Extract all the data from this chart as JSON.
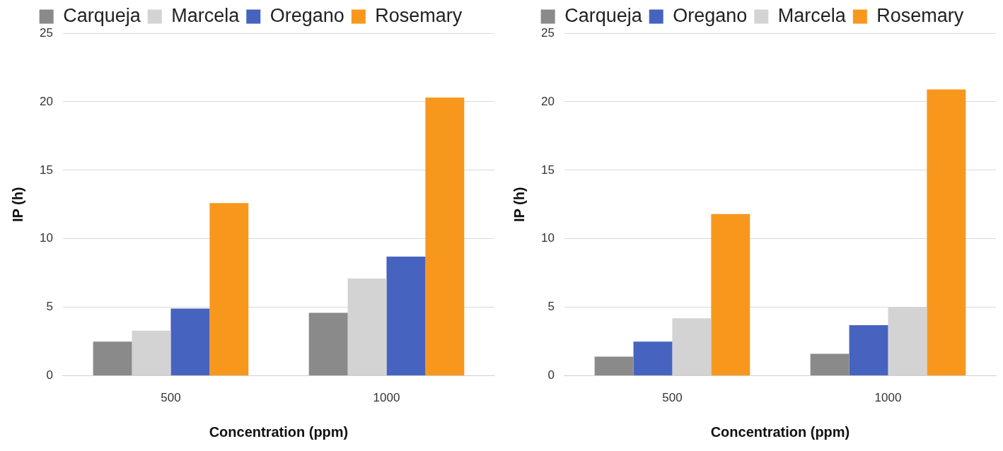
{
  "chart_data": [
    {
      "type": "bar",
      "xlabel": "Concentration (ppm)",
      "ylabel": "IP (h)",
      "categories": [
        "500",
        "1000"
      ],
      "series": [
        {
          "name": "Carqueja",
          "color": "#8a8a8a",
          "values": [
            2.5,
            4.6
          ]
        },
        {
          "name": "Marcela",
          "color": "#d3d3d3",
          "values": [
            3.3,
            7.1
          ]
        },
        {
          "name": "Oregano",
          "color": "#4763c0",
          "values": [
            4.9,
            8.7
          ]
        },
        {
          "name": "Rosemary",
          "color": "#f7981d",
          "values": [
            12.6,
            20.3
          ]
        }
      ],
      "ylim": [
        0,
        25
      ],
      "yticks": [
        0,
        5,
        10,
        15,
        20,
        25
      ],
      "grid": "y",
      "legend": "top"
    },
    {
      "type": "bar",
      "xlabel": "Concentration (ppm)",
      "ylabel": "IP (h)",
      "categories": [
        "500",
        "1000"
      ],
      "series": [
        {
          "name": "Carqueja",
          "color": "#8a8a8a",
          "values": [
            1.4,
            1.6
          ]
        },
        {
          "name": "Oregano",
          "color": "#4763c0",
          "values": [
            2.5,
            3.7
          ]
        },
        {
          "name": "Marcela",
          "color": "#d3d3d3",
          "values": [
            4.2,
            5.0
          ]
        },
        {
          "name": "Rosemary",
          "color": "#f7981d",
          "values": [
            11.8,
            20.9
          ]
        }
      ],
      "ylim": [
        0,
        25
      ],
      "yticks": [
        0,
        5,
        10,
        15,
        20,
        25
      ],
      "grid": "y",
      "legend": "top"
    }
  ]
}
